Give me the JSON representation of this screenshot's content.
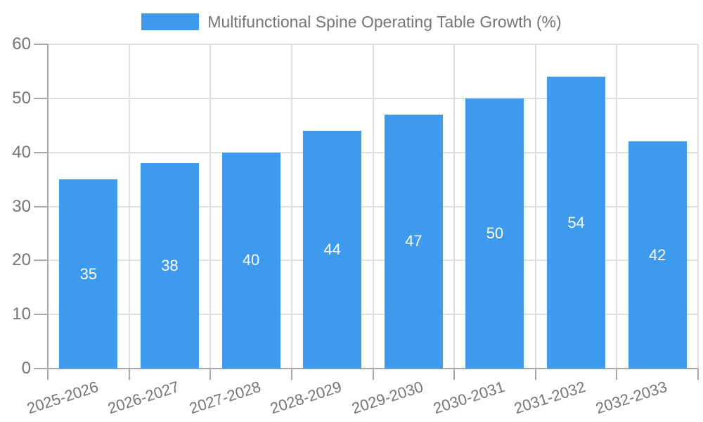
{
  "chart_data": {
    "type": "bar",
    "title": "Multifunctional Spine Operating Table Growth (%)",
    "series_name": "Multifunctional Spine Operating Table Growth (%)",
    "categories": [
      "2025-2026",
      "2026-2027",
      "2027-2028",
      "2028-2029",
      "2029-2030",
      "2030-2031",
      "2031-2032",
      "2032-2033"
    ],
    "values": [
      35,
      38,
      40,
      44,
      47,
      50,
      54,
      42
    ],
    "xlabel": "",
    "ylabel": "",
    "ylim": [
      0,
      60
    ],
    "yticks": [
      0,
      10,
      20,
      30,
      40,
      50,
      60
    ],
    "grid": "on",
    "legend_position": "top-center",
    "data_labels": "inside-center-white",
    "colors": {
      "bar": "#3D9AED",
      "axis_label": "#757575",
      "axis_line": "#A8A8A8",
      "grid_line": "#E0E0E0",
      "data_label": "#FFFFFF",
      "background": "#FFFFFF"
    }
  }
}
